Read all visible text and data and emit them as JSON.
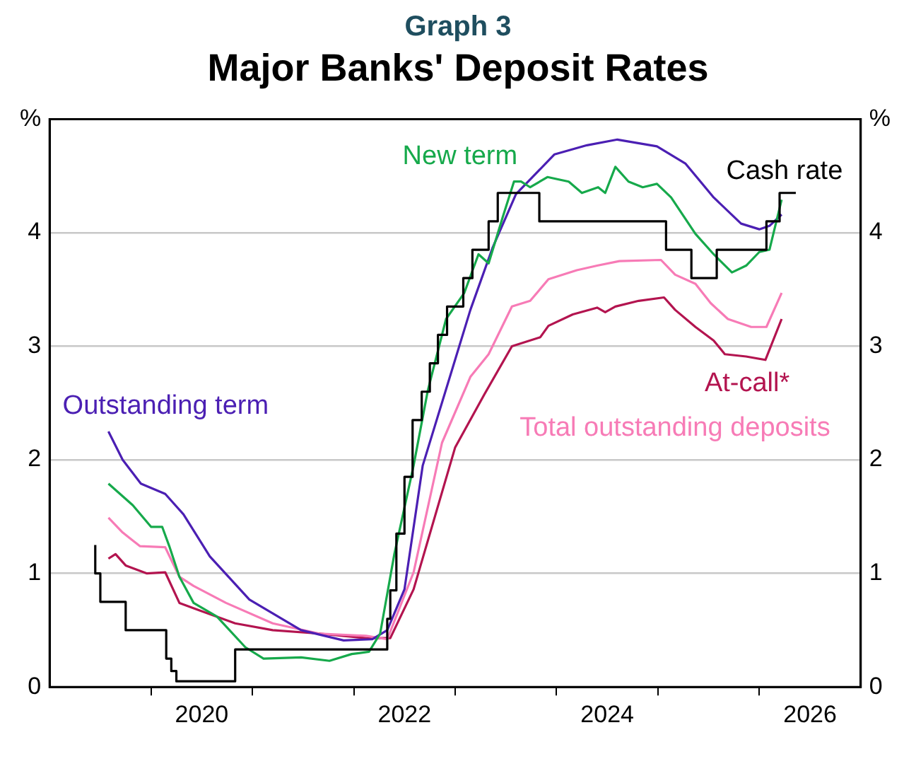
{
  "chart_data": {
    "type": "line",
    "subtitle": "Graph 3",
    "title": "Major Banks' Deposit Rates",
    "xlim": [
      2019,
      2027
    ],
    "xticks": [
      {
        "value": 2020,
        "label": null
      },
      {
        "value": 2020.5,
        "label": "2020"
      },
      {
        "value": 2021,
        "label": null
      },
      {
        "value": 2022,
        "label": null
      },
      {
        "value": 2022.5,
        "label": "2022"
      },
      {
        "value": 2023,
        "label": null
      },
      {
        "value": 2024,
        "label": null
      },
      {
        "value": 2024.5,
        "label": "2024"
      },
      {
        "value": 2025,
        "label": null
      },
      {
        "value": 2026,
        "label": null
      },
      {
        "value": 2026.5,
        "label": "2026"
      }
    ],
    "ylim": [
      0,
      5
    ],
    "yticks": [
      0,
      1,
      2,
      3,
      4,
      {
        "value": 5,
        "label": "%"
      }
    ],
    "y2lim": [
      0,
      5
    ],
    "y2ticks": [
      0,
      1,
      2,
      3,
      4,
      {
        "value": 5,
        "label": "%"
      }
    ],
    "grid": "y",
    "legend": false,
    "marker": "none",
    "series": [
      {
        "name": "Cash rate",
        "type": "step",
        "color": "#000000",
        "x": [
          2019.45,
          2019.5,
          2019.75,
          2020.15,
          2020.2,
          2020.25,
          2020.83,
          2022.33,
          2022.36,
          2022.42,
          2022.5,
          2022.58,
          2022.67,
          2022.75,
          2022.83,
          2022.92,
          2023.08,
          2023.17,
          2023.33,
          2023.42,
          2023.83,
          2025.08,
          2025.33,
          2025.58,
          2026.07,
          2026.2,
          2026.34,
          2026.36
        ],
        "values": [
          1.25,
          1.0,
          0.75,
          0.5,
          0.25,
          0.14,
          0.05,
          0.33,
          0.6,
          0.85,
          1.35,
          1.85,
          2.35,
          2.6,
          2.85,
          3.1,
          3.35,
          3.6,
          3.85,
          4.1,
          4.35,
          4.1,
          3.85,
          3.6,
          3.85,
          4.1,
          4.35,
          4.35
        ]
      },
      {
        "name": "New term",
        "color": "#16a94b",
        "x": [
          2019.58,
          2019.82,
          2020.0,
          2020.11,
          2020.18,
          2020.28,
          2020.42,
          2020.65,
          2020.93,
          2021.11,
          2021.48,
          2021.76,
          2021.98,
          2022.15,
          2022.26,
          2022.4,
          2022.59,
          2022.73,
          2022.91,
          2023.09,
          2023.23,
          2023.33,
          2023.47,
          2023.58,
          2023.65,
          2023.74,
          2023.91,
          2024.12,
          2024.25,
          2024.41,
          2024.48,
          2024.58,
          2024.71,
          2024.85,
          2024.99,
          2025.13,
          2025.37,
          2025.55,
          2025.73,
          2025.87,
          2026.0,
          2026.1,
          2026.22
        ],
        "values": [
          1.79,
          1.6,
          1.41,
          1.41,
          1.24,
          0.97,
          0.74,
          0.62,
          0.35,
          0.25,
          0.26,
          0.23,
          0.29,
          0.31,
          0.47,
          1.17,
          1.95,
          2.61,
          3.24,
          3.47,
          3.81,
          3.73,
          4.14,
          4.45,
          4.45,
          4.4,
          4.49,
          4.45,
          4.35,
          4.4,
          4.35,
          4.58,
          4.45,
          4.4,
          4.43,
          4.31,
          3.99,
          3.81,
          3.65,
          3.71,
          3.83,
          3.85,
          4.29
        ]
      },
      {
        "name": "Outstanding term",
        "color": "#4b1fb3",
        "x": [
          2019.58,
          2019.72,
          2019.9,
          2020.14,
          2020.32,
          2020.58,
          2020.97,
          2021.48,
          2021.9,
          2022.18,
          2022.33,
          2022.5,
          2022.68,
          2023.15,
          2023.37,
          2023.6,
          2023.98,
          2024.3,
          2024.6,
          2024.99,
          2025.27,
          2025.55,
          2025.82,
          2026.0,
          2026.1,
          2026.22
        ],
        "values": [
          2.25,
          2.0,
          1.79,
          1.7,
          1.52,
          1.15,
          0.77,
          0.5,
          0.41,
          0.42,
          0.5,
          0.86,
          1.95,
          3.32,
          3.87,
          4.34,
          4.69,
          4.77,
          4.82,
          4.76,
          4.61,
          4.31,
          4.08,
          4.03,
          4.06,
          4.16
        ]
      },
      {
        "name": "Total outstanding deposits",
        "color": "#f77bb6",
        "x": [
          2019.58,
          2019.72,
          2019.89,
          2020.14,
          2020.28,
          2020.42,
          2020.74,
          2021.2,
          2021.66,
          2022.12,
          2022.33,
          2022.59,
          2022.87,
          2023.15,
          2023.33,
          2023.56,
          2023.74,
          2023.92,
          2024.2,
          2024.4,
          2024.62,
          2025.03,
          2025.17,
          2025.37,
          2025.52,
          2025.69,
          2025.92,
          2026.07,
          2026.22
        ],
        "values": [
          1.49,
          1.36,
          1.24,
          1.23,
          0.97,
          0.89,
          0.74,
          0.56,
          0.47,
          0.45,
          0.42,
          1.01,
          2.15,
          2.73,
          2.93,
          3.35,
          3.4,
          3.59,
          3.67,
          3.71,
          3.75,
          3.76,
          3.63,
          3.55,
          3.38,
          3.24,
          3.17,
          3.17,
          3.47
        ]
      },
      {
        "name": "At-call*",
        "color": "#b3144f",
        "x": [
          2019.58,
          2019.65,
          2019.75,
          2019.96,
          2020.14,
          2020.28,
          2020.46,
          2020.83,
          2021.2,
          2021.66,
          2022.12,
          2022.36,
          2022.59,
          2023.0,
          2023.29,
          2023.56,
          2023.84,
          2023.92,
          2024.16,
          2024.4,
          2024.48,
          2024.58,
          2024.81,
          2025.06,
          2025.17,
          2025.37,
          2025.55,
          2025.66,
          2025.87,
          2026.06,
          2026.22
        ],
        "values": [
          1.13,
          1.17,
          1.07,
          1.0,
          1.01,
          0.74,
          0.68,
          0.56,
          0.5,
          0.47,
          0.43,
          0.43,
          0.86,
          2.11,
          2.58,
          3.0,
          3.08,
          3.18,
          3.28,
          3.34,
          3.3,
          3.35,
          3.4,
          3.43,
          3.32,
          3.17,
          3.05,
          2.93,
          2.91,
          2.88,
          3.24
        ]
      }
    ]
  }
}
